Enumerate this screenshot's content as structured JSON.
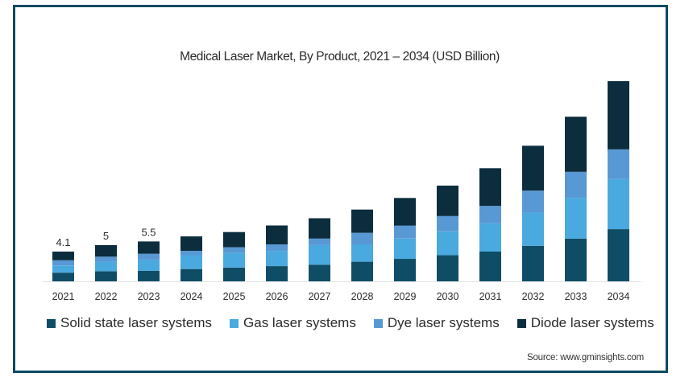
{
  "chart_data": {
    "type": "bar",
    "stacked": true,
    "title": "Medical Laser Market, By Product, 2021 – 2034 (USD Billion)",
    "xlabel": "",
    "ylabel": "",
    "ylim": [
      0,
      30
    ],
    "grid": false,
    "legend_position": "bottom",
    "categories": [
      "2021",
      "2022",
      "2023",
      "2024",
      "2025",
      "2026",
      "2027",
      "2028",
      "2029",
      "2030",
      "2031",
      "2032",
      "2033",
      "2034"
    ],
    "series": [
      {
        "name": "Solid state laser systems",
        "color": "#0f4d66",
        "values": [
          1.2,
          1.4,
          1.45,
          1.7,
          1.9,
          2.1,
          2.3,
          2.7,
          3.1,
          3.6,
          4.1,
          4.9,
          5.9,
          7.2
        ]
      },
      {
        "name": "Gas laser systems",
        "color": "#4aa9df",
        "values": [
          1.0,
          1.3,
          1.55,
          1.9,
          2.0,
          2.1,
          2.7,
          2.4,
          2.8,
          3.3,
          3.9,
          4.6,
          5.6,
          6.9
        ]
      },
      {
        "name": "Dye laser systems",
        "color": "#5898d4",
        "values": [
          0.7,
          0.7,
          0.8,
          0.6,
          0.8,
          0.9,
          0.9,
          1.6,
          1.8,
          2.1,
          2.4,
          3.0,
          3.6,
          4.1
        ]
      },
      {
        "name": "Diode laser systems",
        "color": "#0c2d3e",
        "values": [
          1.2,
          1.6,
          1.7,
          2.0,
          2.1,
          2.6,
          2.8,
          3.2,
          3.8,
          4.2,
          5.2,
          6.2,
          7.6,
          9.4
        ]
      }
    ],
    "data_labels": [
      {
        "category": "2021",
        "text": "4.1"
      },
      {
        "category": "2022",
        "text": "5"
      },
      {
        "category": "2023",
        "text": "5.5"
      }
    ],
    "source": "Source: www.gminsights.com"
  },
  "colors": {
    "frame_border": "#0e4a62",
    "axis_line": "#e3e3e3",
    "text": "#2b2b2b"
  }
}
